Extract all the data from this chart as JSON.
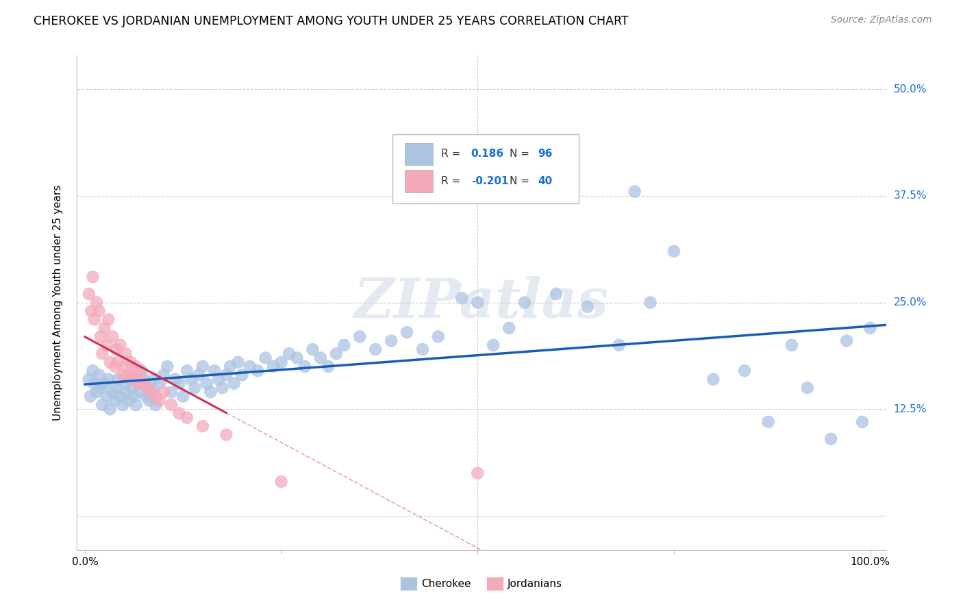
{
  "title": "CHEROKEE VS JORDANIAN UNEMPLOYMENT AMONG YOUTH UNDER 25 YEARS CORRELATION CHART",
  "source": "Source: ZipAtlas.com",
  "ylabel": "Unemployment Among Youth under 25 years",
  "xlim": [
    -0.01,
    1.02
  ],
  "ylim": [
    -0.04,
    0.54
  ],
  "cherokee_R": 0.186,
  "cherokee_N": 96,
  "jordanian_R": -0.201,
  "jordanian_N": 40,
  "cherokee_color": "#aac4e2",
  "jordanian_color": "#f4aabb",
  "cherokee_line_color": "#1a5cb5",
  "jordanian_line_color": "#cc3355",
  "r_value_color": "#1a6ed8",
  "legend_label_cherokee": "Cherokee",
  "legend_label_jordanian": "Jordanians",
  "watermark": "ZIPatlas",
  "title_fontsize": 12.5,
  "source_fontsize": 10,
  "cherokee_x": [
    0.005,
    0.007,
    0.01,
    0.012,
    0.015,
    0.018,
    0.02,
    0.022,
    0.025,
    0.028,
    0.03,
    0.032,
    0.035,
    0.038,
    0.04,
    0.042,
    0.045,
    0.048,
    0.05,
    0.052,
    0.055,
    0.058,
    0.06,
    0.062,
    0.065,
    0.068,
    0.07,
    0.072,
    0.075,
    0.078,
    0.08,
    0.082,
    0.085,
    0.088,
    0.09,
    0.095,
    0.1,
    0.105,
    0.11,
    0.115,
    0.12,
    0.125,
    0.13,
    0.135,
    0.14,
    0.145,
    0.15,
    0.155,
    0.16,
    0.165,
    0.17,
    0.175,
    0.18,
    0.185,
    0.19,
    0.195,
    0.2,
    0.21,
    0.22,
    0.23,
    0.24,
    0.25,
    0.26,
    0.27,
    0.28,
    0.29,
    0.3,
    0.31,
    0.32,
    0.33,
    0.35,
    0.37,
    0.39,
    0.41,
    0.43,
    0.45,
    0.48,
    0.5,
    0.52,
    0.54,
    0.56,
    0.6,
    0.64,
    0.68,
    0.7,
    0.72,
    0.75,
    0.8,
    0.84,
    0.87,
    0.9,
    0.92,
    0.95,
    0.97,
    0.99,
    1.0
  ],
  "cherokee_y": [
    0.16,
    0.14,
    0.17,
    0.155,
    0.145,
    0.165,
    0.15,
    0.13,
    0.155,
    0.14,
    0.16,
    0.125,
    0.145,
    0.135,
    0.15,
    0.16,
    0.14,
    0.13,
    0.155,
    0.145,
    0.135,
    0.16,
    0.15,
    0.14,
    0.13,
    0.155,
    0.145,
    0.17,
    0.16,
    0.14,
    0.15,
    0.135,
    0.145,
    0.16,
    0.13,
    0.155,
    0.165,
    0.175,
    0.145,
    0.16,
    0.155,
    0.14,
    0.17,
    0.16,
    0.15,
    0.165,
    0.175,
    0.155,
    0.145,
    0.17,
    0.16,
    0.15,
    0.165,
    0.175,
    0.155,
    0.18,
    0.165,
    0.175,
    0.17,
    0.185,
    0.175,
    0.18,
    0.19,
    0.185,
    0.175,
    0.195,
    0.185,
    0.175,
    0.19,
    0.2,
    0.21,
    0.195,
    0.205,
    0.215,
    0.195,
    0.21,
    0.255,
    0.25,
    0.2,
    0.22,
    0.25,
    0.26,
    0.245,
    0.2,
    0.38,
    0.25,
    0.31,
    0.16,
    0.17,
    0.11,
    0.2,
    0.15,
    0.09,
    0.205,
    0.11,
    0.22
  ],
  "jordanian_x": [
    0.005,
    0.008,
    0.01,
    0.012,
    0.015,
    0.018,
    0.02,
    0.022,
    0.025,
    0.028,
    0.03,
    0.032,
    0.035,
    0.038,
    0.04,
    0.042,
    0.045,
    0.048,
    0.05,
    0.052,
    0.055,
    0.058,
    0.06,
    0.062,
    0.065,
    0.068,
    0.07,
    0.075,
    0.08,
    0.085,
    0.09,
    0.095,
    0.1,
    0.11,
    0.12,
    0.13,
    0.15,
    0.18,
    0.25,
    0.5
  ],
  "jordanian_y": [
    0.26,
    0.24,
    0.28,
    0.23,
    0.25,
    0.24,
    0.21,
    0.19,
    0.22,
    0.2,
    0.23,
    0.18,
    0.21,
    0.175,
    0.195,
    0.18,
    0.2,
    0.165,
    0.175,
    0.19,
    0.165,
    0.18,
    0.17,
    0.16,
    0.175,
    0.155,
    0.165,
    0.155,
    0.15,
    0.145,
    0.14,
    0.135,
    0.145,
    0.13,
    0.12,
    0.115,
    0.105,
    0.095,
    0.04,
    0.05
  ],
  "y_ticks": [
    0.0,
    0.125,
    0.25,
    0.375,
    0.5
  ],
  "y_tick_labels": [
    "",
    "12.5%",
    "25.0%",
    "37.5%",
    "50.0%"
  ],
  "x_ticks": [
    0.0,
    0.25,
    0.5,
    0.75,
    1.0
  ],
  "x_tick_labels": [
    "0.0%",
    "",
    "",
    "",
    "100.0%"
  ]
}
